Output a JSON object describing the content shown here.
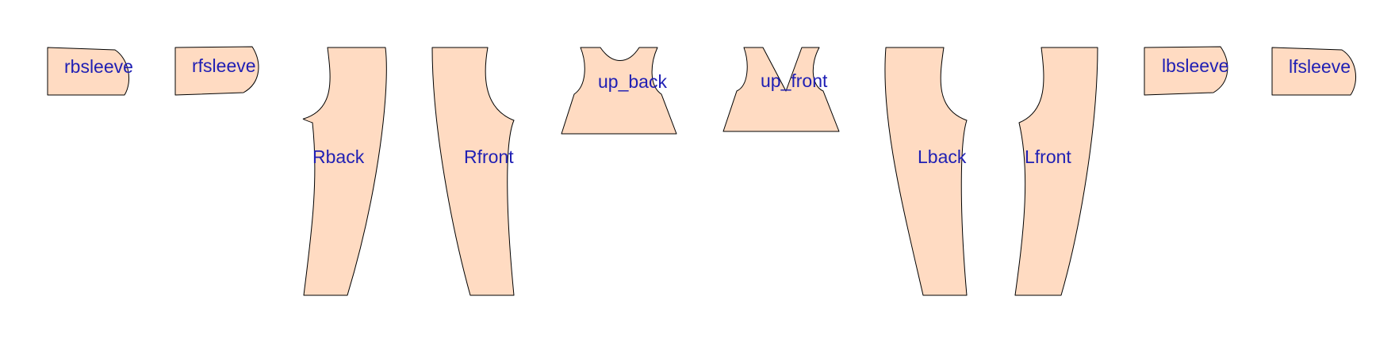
{
  "colors": {
    "piece_fill": "#ffdbc2",
    "outline": "#000000",
    "label": "#1f1fb4",
    "background": "#ffffff"
  },
  "pieces": [
    {
      "id": "rbsleeve",
      "label": "rbsleeve"
    },
    {
      "id": "rfsleeve",
      "label": "rfsleeve"
    },
    {
      "id": "Rback",
      "label": "Rback"
    },
    {
      "id": "Rfront",
      "label": "Rfront"
    },
    {
      "id": "up_back",
      "label": "up_back"
    },
    {
      "id": "up_front",
      "label": "up_front"
    },
    {
      "id": "Lback",
      "label": "Lback"
    },
    {
      "id": "Lfront",
      "label": "Lfront"
    },
    {
      "id": "lbsleeve",
      "label": "lbsleeve"
    },
    {
      "id": "lfsleeve",
      "label": "lfsleeve"
    }
  ]
}
